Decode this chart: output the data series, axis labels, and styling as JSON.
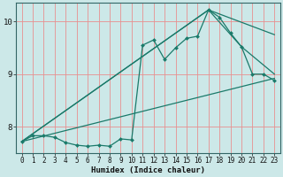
{
  "bg_color": "#cce8e8",
  "grid_color": "#e89090",
  "line_color": "#1a7a6a",
  "marker_color": "#1a7a6a",
  "xlabel": "Humidex (Indice chaleur)",
  "xlim": [
    -0.5,
    23.5
  ],
  "ylim": [
    7.5,
    10.35
  ],
  "yticks": [
    8,
    9,
    10
  ],
  "xticks": [
    0,
    1,
    2,
    3,
    4,
    5,
    6,
    7,
    8,
    9,
    10,
    11,
    12,
    13,
    14,
    15,
    16,
    17,
    18,
    19,
    20,
    21,
    22,
    23
  ],
  "series1_x": [
    0,
    1,
    2,
    3,
    4,
    5,
    6,
    7,
    8,
    9,
    10,
    11,
    12,
    13,
    14,
    15,
    16,
    17,
    18,
    19,
    20,
    21,
    22,
    23
  ],
  "series1_y": [
    7.72,
    7.83,
    7.83,
    7.8,
    7.7,
    7.65,
    7.63,
    7.65,
    7.63,
    7.77,
    7.75,
    9.55,
    9.65,
    9.28,
    9.5,
    9.68,
    9.72,
    10.22,
    10.08,
    9.78,
    9.52,
    9.0,
    9.0,
    8.88
  ],
  "series2_x": [
    0,
    23
  ],
  "series2_y": [
    7.72,
    8.92
  ],
  "series3_x": [
    0,
    17,
    23
  ],
  "series3_y": [
    7.72,
    10.22,
    9.75
  ],
  "series4_x": [
    0,
    17,
    20,
    23
  ],
  "series4_y": [
    7.72,
    10.22,
    9.52,
    9.0
  ]
}
